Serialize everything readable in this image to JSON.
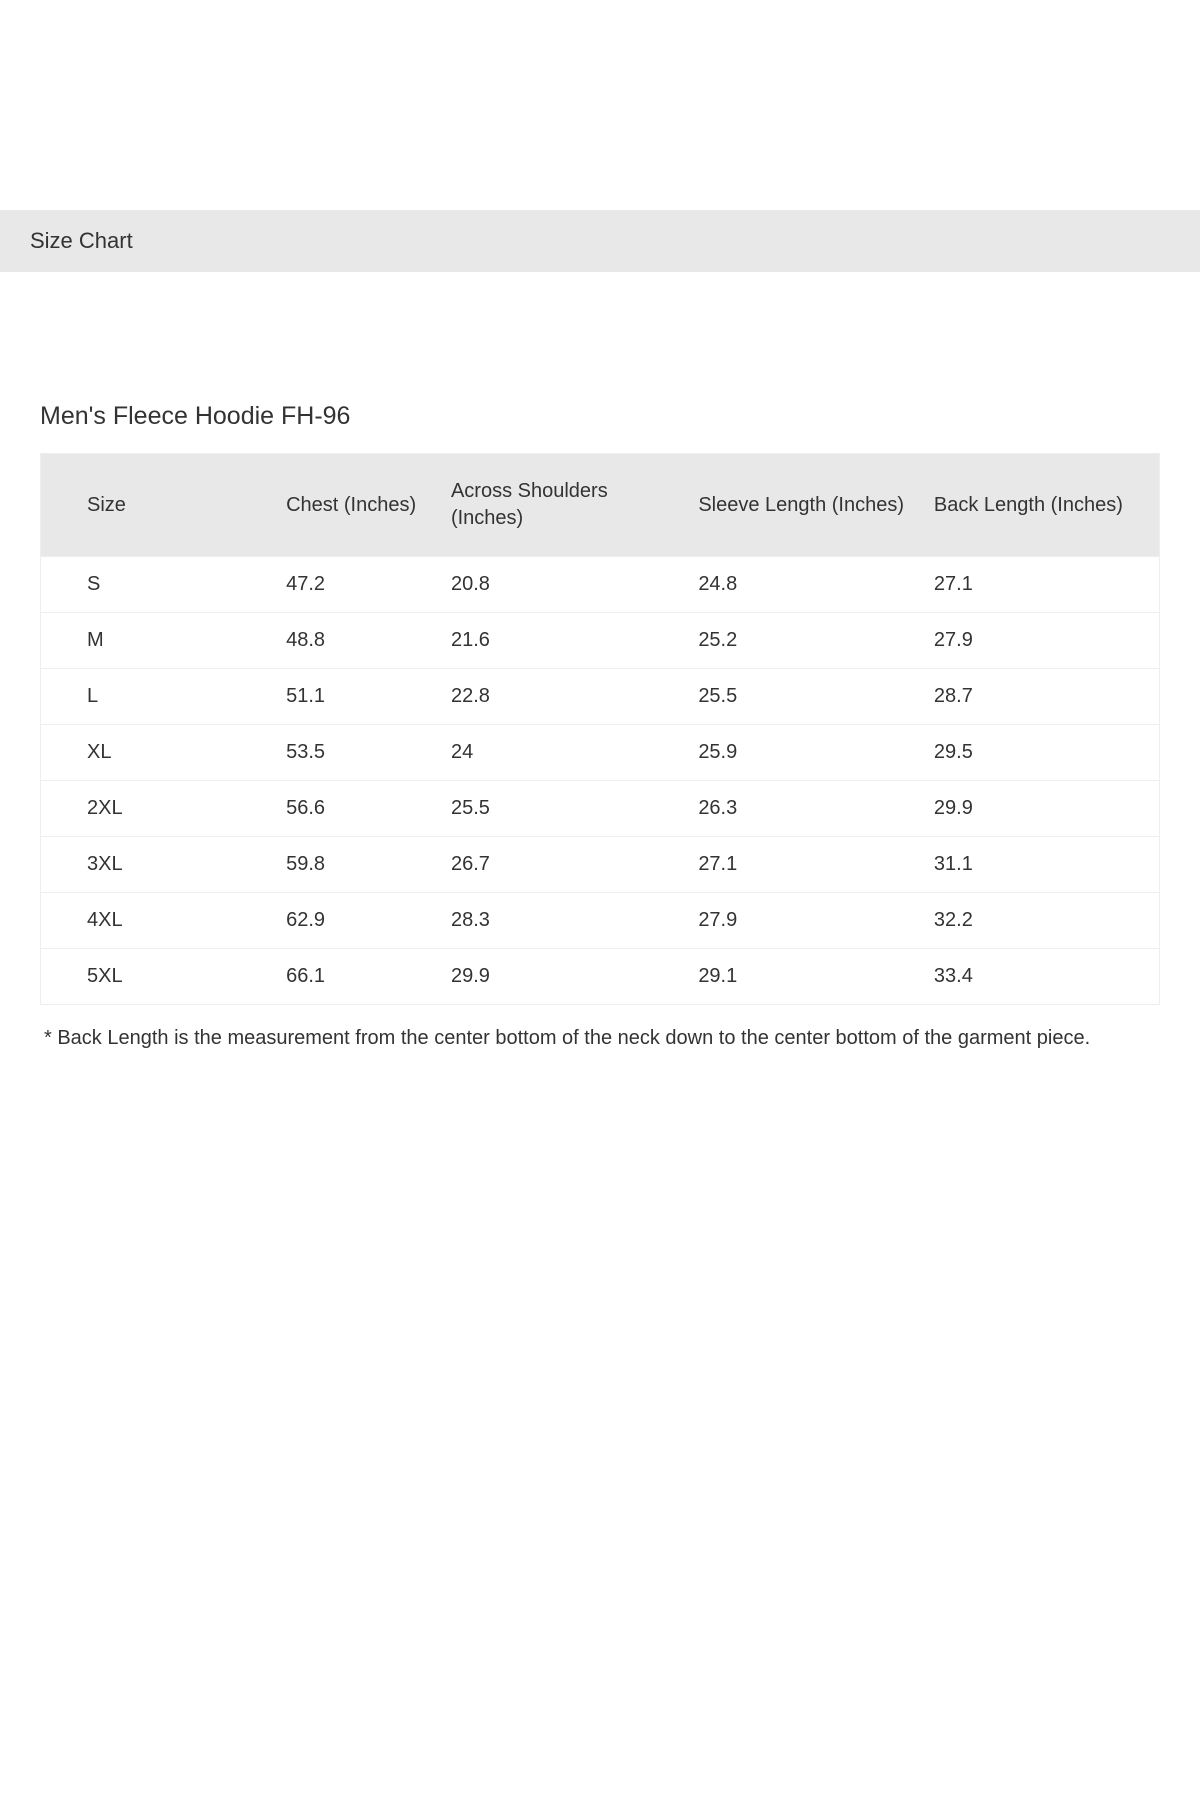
{
  "header": {
    "title": "Size Chart"
  },
  "product": {
    "title": "Men's Fleece Hoodie FH-96"
  },
  "table": {
    "columns": [
      "Size",
      "Chest (Inches)",
      "Across Shoulders (Inches)",
      "Sleeve Length (Inches)",
      "Back Length (Inches)"
    ],
    "rows": [
      [
        "S",
        "47.2",
        "20.8",
        "24.8",
        "27.1"
      ],
      [
        "M",
        "48.8",
        "21.6",
        "25.2",
        "27.9"
      ],
      [
        "L",
        "51.1",
        "22.8",
        "25.5",
        "28.7"
      ],
      [
        "XL",
        "53.5",
        "24",
        "25.9",
        "29.5"
      ],
      [
        "2XL",
        "56.6",
        "25.5",
        "26.3",
        "29.9"
      ],
      [
        "3XL",
        "59.8",
        "26.7",
        "27.1",
        "31.1"
      ],
      [
        "4XL",
        "62.9",
        "28.3",
        "27.9",
        "32.2"
      ],
      [
        "5XL",
        "66.1",
        "29.9",
        "29.1",
        "33.4"
      ]
    ],
    "header_bg_color": "#e8e8e8",
    "border_color": "#eeeeee",
    "font_size": 20
  },
  "footnote": {
    "text": "* Back Length is the measurement from the center bottom of the neck down to the center bottom of the garment piece."
  },
  "colors": {
    "background": "#ffffff",
    "header_bar_bg": "#e8e8e8",
    "text": "#333333"
  }
}
